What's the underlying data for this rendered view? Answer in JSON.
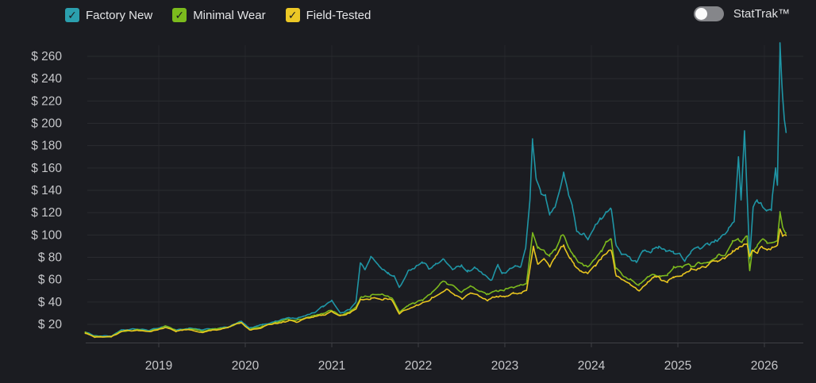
{
  "legend": {
    "items": [
      {
        "label": "Factory New",
        "color": "#2b9fae",
        "line_color": "#1f96a6",
        "checked": true
      },
      {
        "label": "Minimal Wear",
        "color": "#7cbb1d",
        "line_color": "#7cb91d",
        "checked": true
      },
      {
        "label": "Field-Tested",
        "color": "#ecc826",
        "line_color": "#e8c51f",
        "checked": true
      }
    ],
    "check_glyph": "✓"
  },
  "stattrak": {
    "label": "StatTrak™",
    "enabled": false
  },
  "colors": {
    "background": "#1b1c21",
    "grid": "#2a2b30",
    "vgrid": "#25262a",
    "axis": "#3f4045",
    "tick_text": "#c6c7ca"
  },
  "chart_data": {
    "type": "line",
    "title": "",
    "xlabel": "",
    "ylabel": "",
    "grid": true,
    "legend_position": "top-left",
    "x_axis": {
      "ticks": [
        2019,
        2020,
        2021,
        2022,
        2023,
        2024,
        2025,
        2026
      ],
      "labels": [
        "2019",
        "2020",
        "2021",
        "2022",
        "2023",
        "2024",
        "2025",
        "2026"
      ],
      "range": [
        2018.13,
        2026.42
      ]
    },
    "y_axis": {
      "ticks": [
        20,
        40,
        60,
        80,
        100,
        120,
        140,
        160,
        180,
        200,
        220,
        240,
        260
      ],
      "labels": [
        "$ 20",
        "$ 40",
        "$ 60",
        "$ 80",
        "$ 100",
        "$ 120",
        "$ 140",
        "$ 160",
        "$ 180",
        "$ 200",
        "$ 220",
        "$ 240",
        "$ 260"
      ],
      "range": [
        0,
        272
      ]
    },
    "series": [
      {
        "name": "Factory New",
        "color": "#1f96a6",
        "points": [
          [
            2018.15,
            13
          ],
          [
            2018.25,
            10
          ],
          [
            2018.45,
            9.5
          ],
          [
            2018.57,
            14.5
          ],
          [
            2018.75,
            15.5
          ],
          [
            2018.9,
            14.5
          ],
          [
            2019.07,
            18.5
          ],
          [
            2019.2,
            15
          ],
          [
            2019.35,
            16.5
          ],
          [
            2019.5,
            14.5
          ],
          [
            2019.65,
            16
          ],
          [
            2019.8,
            17.5
          ],
          [
            2019.95,
            22.5
          ],
          [
            2020.05,
            16
          ],
          [
            2020.2,
            19.5
          ],
          [
            2020.35,
            23
          ],
          [
            2020.5,
            26
          ],
          [
            2020.6,
            25
          ],
          [
            2020.7,
            28
          ],
          [
            2020.8,
            31
          ],
          [
            2020.9,
            36
          ],
          [
            2021.0,
            42
          ],
          [
            2021.1,
            30
          ],
          [
            2021.2,
            33
          ],
          [
            2021.28,
            41
          ],
          [
            2021.33,
            75
          ],
          [
            2021.38,
            69
          ],
          [
            2021.45,
            79
          ],
          [
            2021.55,
            73
          ],
          [
            2021.65,
            66
          ],
          [
            2021.72,
            63
          ],
          [
            2021.78,
            53
          ],
          [
            2021.88,
            66
          ],
          [
            2021.95,
            71
          ],
          [
            2022.05,
            77
          ],
          [
            2022.12,
            71
          ],
          [
            2022.2,
            74
          ],
          [
            2022.3,
            77
          ],
          [
            2022.4,
            69
          ],
          [
            2022.5,
            72
          ],
          [
            2022.57,
            65
          ],
          [
            2022.65,
            70
          ],
          [
            2022.75,
            64
          ],
          [
            2022.85,
            60
          ],
          [
            2022.92,
            74
          ],
          [
            2022.97,
            65
          ],
          [
            2023.05,
            68
          ],
          [
            2023.12,
            72
          ],
          [
            2023.18,
            71
          ],
          [
            2023.24,
            88
          ],
          [
            2023.29,
            131
          ],
          [
            2023.32,
            186
          ],
          [
            2023.36,
            152
          ],
          [
            2023.42,
            137
          ],
          [
            2023.47,
            134
          ],
          [
            2023.52,
            117
          ],
          [
            2023.58,
            125
          ],
          [
            2023.64,
            143
          ],
          [
            2023.68,
            155
          ],
          [
            2023.73,
            139
          ],
          [
            2023.78,
            128
          ],
          [
            2023.83,
            104
          ],
          [
            2023.9,
            100
          ],
          [
            2023.96,
            97
          ],
          [
            2024.04,
            107
          ],
          [
            2024.1,
            112
          ],
          [
            2024.17,
            118
          ],
          [
            2024.23,
            125
          ],
          [
            2024.28,
            94
          ],
          [
            2024.35,
            85
          ],
          [
            2024.45,
            79
          ],
          [
            2024.52,
            76
          ],
          [
            2024.6,
            88
          ],
          [
            2024.7,
            87
          ],
          [
            2024.78,
            88
          ],
          [
            2024.86,
            85
          ],
          [
            2024.95,
            84
          ],
          [
            2025.02,
            83
          ],
          [
            2025.08,
            78
          ],
          [
            2025.15,
            84
          ],
          [
            2025.24,
            87
          ],
          [
            2025.35,
            92
          ],
          [
            2025.42,
            94
          ],
          [
            2025.49,
            96
          ],
          [
            2025.58,
            103
          ],
          [
            2025.65,
            112
          ],
          [
            2025.7,
            170
          ],
          [
            2025.73,
            131
          ],
          [
            2025.77,
            193
          ],
          [
            2025.83,
            78
          ],
          [
            2025.87,
            125
          ],
          [
            2025.92,
            132
          ],
          [
            2025.97,
            128
          ],
          [
            2026.03,
            124
          ],
          [
            2026.08,
            127
          ],
          [
            2026.13,
            161
          ],
          [
            2026.15,
            146
          ],
          [
            2026.18,
            266
          ],
          [
            2026.21,
            224
          ],
          [
            2026.23,
            205
          ],
          [
            2026.25,
            193
          ]
        ]
      },
      {
        "name": "Minimal Wear",
        "color": "#7cb91d",
        "points": [
          [
            2018.15,
            12.5
          ],
          [
            2018.25,
            9
          ],
          [
            2018.45,
            9
          ],
          [
            2018.57,
            14
          ],
          [
            2018.75,
            15
          ],
          [
            2018.9,
            14
          ],
          [
            2019.07,
            18
          ],
          [
            2019.2,
            14.5
          ],
          [
            2019.35,
            16
          ],
          [
            2019.5,
            14
          ],
          [
            2019.65,
            15.5
          ],
          [
            2019.8,
            17
          ],
          [
            2019.95,
            21.5
          ],
          [
            2020.05,
            15.5
          ],
          [
            2020.2,
            18.5
          ],
          [
            2020.35,
            21.5
          ],
          [
            2020.5,
            24
          ],
          [
            2020.6,
            23
          ],
          [
            2020.7,
            26
          ],
          [
            2020.8,
            28
          ],
          [
            2020.9,
            30
          ],
          [
            2021.0,
            33
          ],
          [
            2021.1,
            28
          ],
          [
            2021.2,
            31
          ],
          [
            2021.28,
            36
          ],
          [
            2021.33,
            44
          ],
          [
            2021.45,
            46
          ],
          [
            2021.6,
            45
          ],
          [
            2021.7,
            43
          ],
          [
            2021.78,
            32
          ],
          [
            2021.88,
            37
          ],
          [
            2021.95,
            39
          ],
          [
            2022.05,
            43
          ],
          [
            2022.15,
            48
          ],
          [
            2022.25,
            55
          ],
          [
            2022.32,
            58
          ],
          [
            2022.42,
            53
          ],
          [
            2022.5,
            50
          ],
          [
            2022.6,
            53
          ],
          [
            2022.7,
            50
          ],
          [
            2022.8,
            47
          ],
          [
            2022.9,
            50
          ],
          [
            2023.0,
            51
          ],
          [
            2023.1,
            52
          ],
          [
            2023.18,
            53
          ],
          [
            2023.25,
            56
          ],
          [
            2023.32,
            101
          ],
          [
            2023.38,
            88
          ],
          [
            2023.45,
            85
          ],
          [
            2023.52,
            79
          ],
          [
            2023.58,
            86
          ],
          [
            2023.64,
            95
          ],
          [
            2023.68,
            99
          ],
          [
            2023.75,
            86
          ],
          [
            2023.8,
            80
          ],
          [
            2023.88,
            74
          ],
          [
            2023.96,
            71
          ],
          [
            2024.05,
            80
          ],
          [
            2024.12,
            85
          ],
          [
            2024.17,
            92
          ],
          [
            2024.23,
            94
          ],
          [
            2024.28,
            70
          ],
          [
            2024.35,
            65
          ],
          [
            2024.45,
            60
          ],
          [
            2024.55,
            55
          ],
          [
            2024.65,
            63
          ],
          [
            2024.72,
            67
          ],
          [
            2024.8,
            66
          ],
          [
            2024.88,
            65
          ],
          [
            2024.95,
            69
          ],
          [
            2025.05,
            71
          ],
          [
            2025.15,
            73
          ],
          [
            2025.25,
            75
          ],
          [
            2025.35,
            77
          ],
          [
            2025.45,
            80
          ],
          [
            2025.55,
            83
          ],
          [
            2025.63,
            92
          ],
          [
            2025.7,
            95
          ],
          [
            2025.75,
            96
          ],
          [
            2025.8,
            98
          ],
          [
            2025.83,
            67
          ],
          [
            2025.86,
            86
          ],
          [
            2025.92,
            90
          ],
          [
            2025.97,
            97
          ],
          [
            2026.03,
            93
          ],
          [
            2026.09,
            91
          ],
          [
            2026.15,
            95
          ],
          [
            2026.18,
            119
          ],
          [
            2026.21,
            108
          ],
          [
            2026.25,
            103
          ]
        ]
      },
      {
        "name": "Field-Tested",
        "color": "#e8c51f",
        "points": [
          [
            2018.15,
            12
          ],
          [
            2018.25,
            8.5
          ],
          [
            2018.45,
            8.5
          ],
          [
            2018.57,
            13.5
          ],
          [
            2018.75,
            14.5
          ],
          [
            2018.9,
            13.5
          ],
          [
            2019.07,
            17.5
          ],
          [
            2019.2,
            14
          ],
          [
            2019.35,
            15.5
          ],
          [
            2019.5,
            13.5
          ],
          [
            2019.65,
            15
          ],
          [
            2019.8,
            16.5
          ],
          [
            2019.95,
            21
          ],
          [
            2020.05,
            15
          ],
          [
            2020.2,
            18
          ],
          [
            2020.35,
            21
          ],
          [
            2020.5,
            23
          ],
          [
            2020.6,
            22
          ],
          [
            2020.7,
            25
          ],
          [
            2020.8,
            27
          ],
          [
            2020.9,
            28
          ],
          [
            2021.0,
            31
          ],
          [
            2021.1,
            27
          ],
          [
            2021.2,
            30
          ],
          [
            2021.28,
            34
          ],
          [
            2021.33,
            42
          ],
          [
            2021.45,
            44
          ],
          [
            2021.6,
            43
          ],
          [
            2021.7,
            41
          ],
          [
            2021.78,
            29
          ],
          [
            2021.88,
            34
          ],
          [
            2021.95,
            36
          ],
          [
            2022.05,
            39
          ],
          [
            2022.15,
            43
          ],
          [
            2022.25,
            48
          ],
          [
            2022.32,
            51
          ],
          [
            2022.42,
            46
          ],
          [
            2022.5,
            43
          ],
          [
            2022.6,
            47
          ],
          [
            2022.7,
            44
          ],
          [
            2022.8,
            42
          ],
          [
            2022.9,
            45
          ],
          [
            2023.0,
            46
          ],
          [
            2023.1,
            47
          ],
          [
            2023.18,
            48
          ],
          [
            2023.25,
            50
          ],
          [
            2023.33,
            90
          ],
          [
            2023.38,
            74
          ],
          [
            2023.45,
            79
          ],
          [
            2023.52,
            72
          ],
          [
            2023.58,
            80
          ],
          [
            2023.64,
            87
          ],
          [
            2023.68,
            90
          ],
          [
            2023.75,
            79
          ],
          [
            2023.8,
            74
          ],
          [
            2023.88,
            69
          ],
          [
            2023.96,
            66
          ],
          [
            2024.05,
            74
          ],
          [
            2024.12,
            79
          ],
          [
            2024.17,
            84
          ],
          [
            2024.23,
            88
          ],
          [
            2024.28,
            66
          ],
          [
            2024.35,
            61
          ],
          [
            2024.45,
            56
          ],
          [
            2024.55,
            50
          ],
          [
            2024.65,
            58
          ],
          [
            2024.72,
            62
          ],
          [
            2024.8,
            61
          ],
          [
            2024.88,
            60
          ],
          [
            2024.95,
            64
          ],
          [
            2025.05,
            66
          ],
          [
            2025.15,
            68
          ],
          [
            2025.25,
            70
          ],
          [
            2025.35,
            73
          ],
          [
            2025.45,
            76
          ],
          [
            2025.55,
            79
          ],
          [
            2025.63,
            85
          ],
          [
            2025.7,
            88
          ],
          [
            2025.75,
            91
          ],
          [
            2025.8,
            93
          ],
          [
            2025.83,
            80
          ],
          [
            2025.86,
            87
          ],
          [
            2025.92,
            87
          ],
          [
            2025.97,
            90
          ],
          [
            2026.03,
            88
          ],
          [
            2026.09,
            89
          ],
          [
            2026.15,
            91
          ],
          [
            2026.18,
            105
          ],
          [
            2026.21,
            100
          ],
          [
            2026.25,
            101
          ]
        ]
      },
      {
        "name": "StatTrak™ (toggle off, not shown)",
        "color": "",
        "points": []
      }
    ],
    "noise": {
      "step_years": 0.022,
      "walk_amp_base": 0.5,
      "walk_amp_scale": 0.05,
      "walk_decay": 0.78,
      "slope_damping": 0.35
    }
  }
}
